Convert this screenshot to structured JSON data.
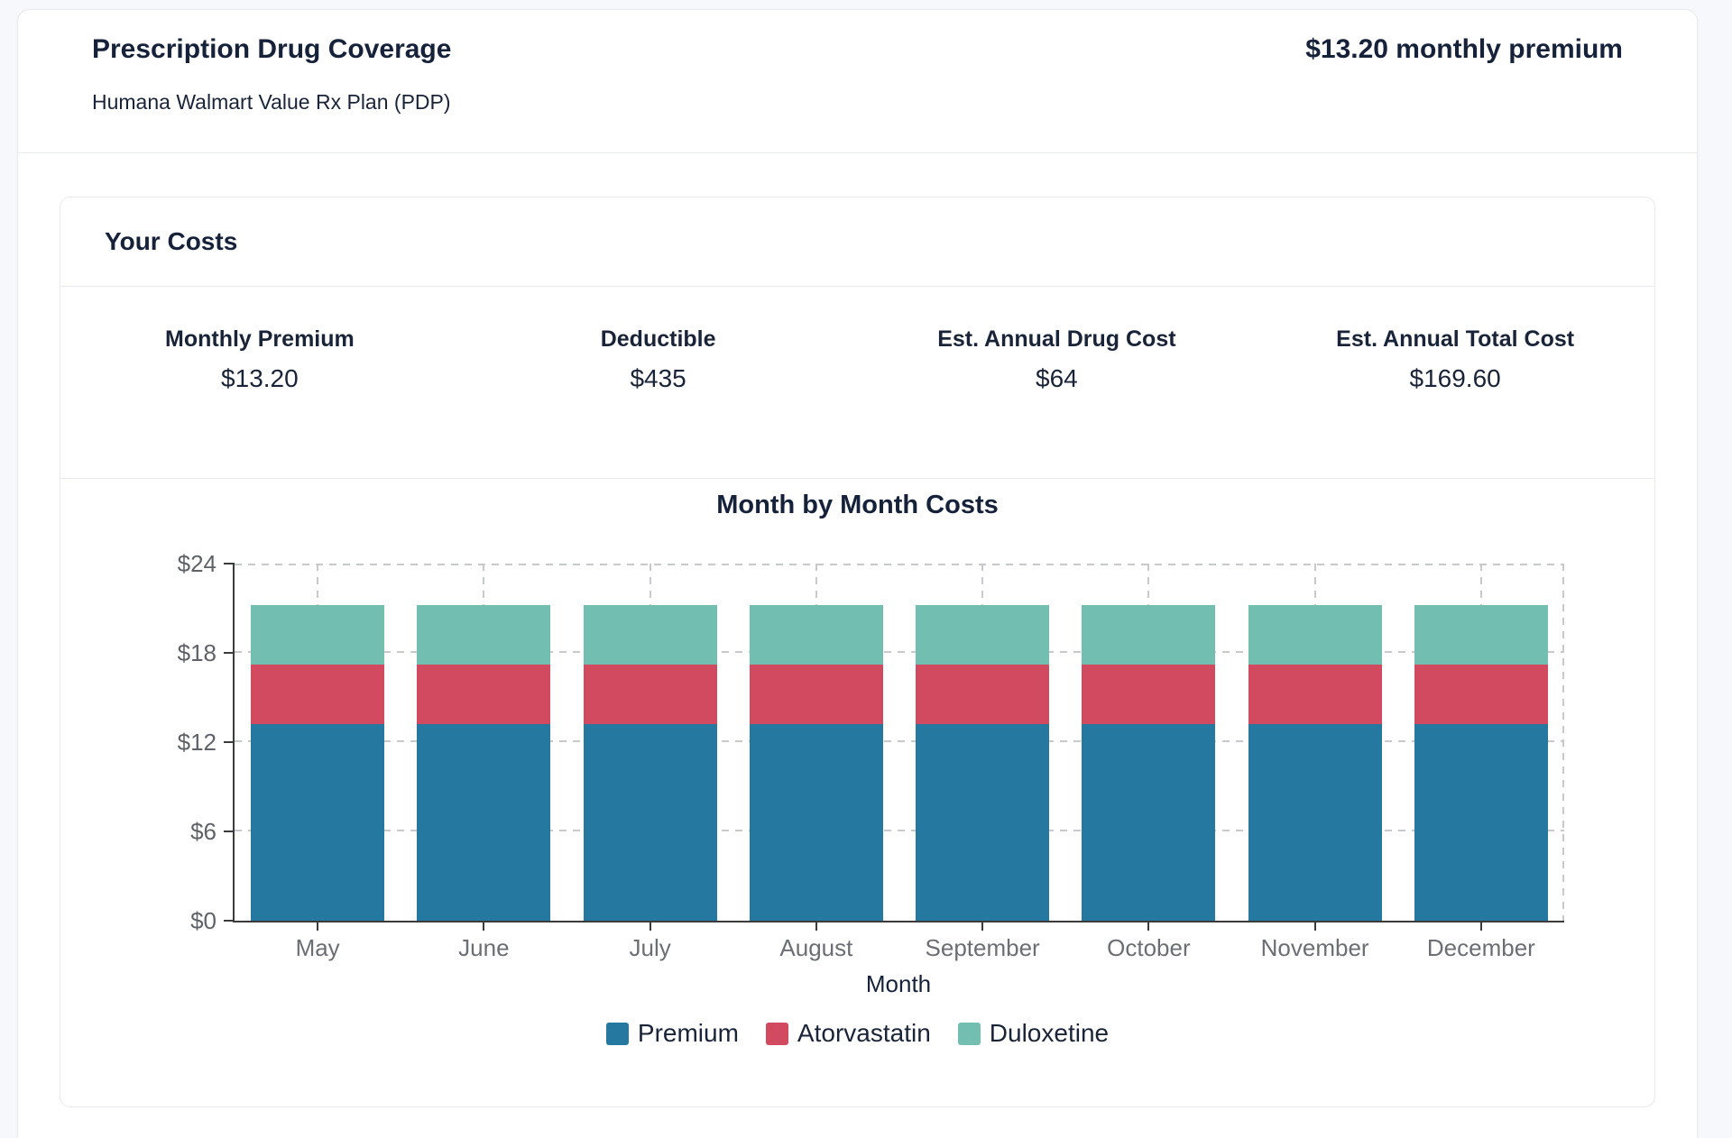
{
  "header": {
    "title": "Prescription Drug Coverage",
    "plan_name": "Humana Walmart Value Rx Plan (PDP)",
    "premium_summary": "$13.20 monthly premium"
  },
  "costs": {
    "section_title": "Your Costs",
    "stats": [
      {
        "label": "Monthly Premium",
        "value": "$13.20"
      },
      {
        "label": "Deductible",
        "value": "$435"
      },
      {
        "label": "Est. Annual Drug Cost",
        "value": "$64"
      },
      {
        "label": "Est. Annual Total Cost",
        "value": "$169.60"
      }
    ]
  },
  "chart_data": {
    "type": "bar",
    "stacked": true,
    "title": "Month by Month Costs",
    "xlabel": "Month",
    "ylabel": "",
    "categories": [
      "May",
      "June",
      "July",
      "August",
      "September",
      "October",
      "November",
      "December"
    ],
    "series": [
      {
        "name": "Premium",
        "color": "#2578a0",
        "values": [
          13.2,
          13.2,
          13.2,
          13.2,
          13.2,
          13.2,
          13.2,
          13.2
        ]
      },
      {
        "name": "Atorvastatin",
        "color": "#d14a5f",
        "values": [
          4,
          4,
          4,
          4,
          4,
          4,
          4,
          4
        ]
      },
      {
        "name": "Duloxetine",
        "color": "#72bfb2",
        "values": [
          4,
          4,
          4,
          4,
          4,
          4,
          4,
          4
        ]
      }
    ],
    "ylim": [
      0,
      24
    ],
    "ytick_step": 6,
    "ytick_labels": [
      "$0",
      "$6",
      "$12",
      "$18",
      "$24"
    ],
    "grid": "dashed",
    "legend_position": "bottom",
    "axis_color": "#3b3b3b",
    "grid_color": "#c7c9cd",
    "tick_text_color": "#5f6368"
  }
}
